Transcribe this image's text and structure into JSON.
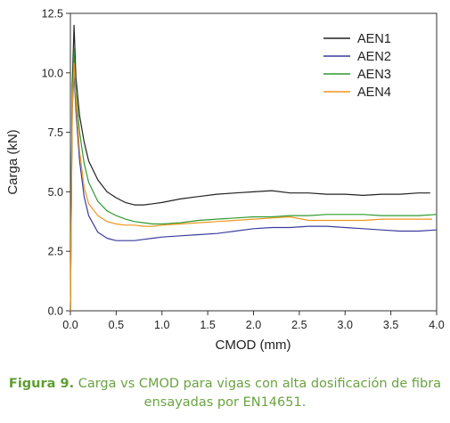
{
  "chart_data": {
    "type": "line",
    "xlabel": "CMOD (mm)",
    "ylabel": "Carga (kN)",
    "xlim": [
      0.0,
      4.0
    ],
    "ylim": [
      0.0,
      12.5
    ],
    "x_ticks": [
      "0.0",
      "0.5",
      "1.0",
      "1.5",
      "2.0",
      "2.5",
      "3.0",
      "3.5",
      "4.0"
    ],
    "y_ticks": [
      "0.0",
      "2.5",
      "5.0",
      "7.5",
      "10.0",
      "12.5"
    ],
    "legend_position": "top-right",
    "series": [
      {
        "name": "AEN1",
        "color": "#222222",
        "points": [
          [
            0,
            0
          ],
          [
            0.02,
            9.5
          ],
          [
            0.04,
            12.0
          ],
          [
            0.06,
            9.8
          ],
          [
            0.1,
            8.2
          ],
          [
            0.15,
            7.1
          ],
          [
            0.2,
            6.3
          ],
          [
            0.3,
            5.5
          ],
          [
            0.4,
            5.0
          ],
          [
            0.5,
            4.75
          ],
          [
            0.6,
            4.55
          ],
          [
            0.7,
            4.45
          ],
          [
            0.8,
            4.45
          ],
          [
            0.9,
            4.5
          ],
          [
            1.0,
            4.55
          ],
          [
            1.2,
            4.7
          ],
          [
            1.4,
            4.8
          ],
          [
            1.6,
            4.9
          ],
          [
            1.8,
            4.95
          ],
          [
            2.0,
            5.0
          ],
          [
            2.2,
            5.05
          ],
          [
            2.4,
            4.95
          ],
          [
            2.6,
            4.95
          ],
          [
            2.8,
            4.9
          ],
          [
            3.0,
            4.9
          ],
          [
            3.2,
            4.85
          ],
          [
            3.4,
            4.9
          ],
          [
            3.6,
            4.9
          ],
          [
            3.8,
            4.95
          ],
          [
            3.93,
            4.95
          ]
        ]
      },
      {
        "name": "AEN2",
        "color": "#3b3b9e",
        "points": [
          [
            0,
            0
          ],
          [
            0.02,
            8.5
          ],
          [
            0.04,
            10.0
          ],
          [
            0.06,
            8.4
          ],
          [
            0.1,
            6.3
          ],
          [
            0.15,
            4.8
          ],
          [
            0.2,
            4.0
          ],
          [
            0.3,
            3.3
          ],
          [
            0.4,
            3.05
          ],
          [
            0.5,
            2.95
          ],
          [
            0.6,
            2.95
          ],
          [
            0.7,
            2.95
          ],
          [
            0.8,
            3.0
          ],
          [
            0.9,
            3.05
          ],
          [
            1.0,
            3.1
          ],
          [
            1.2,
            3.15
          ],
          [
            1.4,
            3.2
          ],
          [
            1.6,
            3.25
          ],
          [
            1.8,
            3.35
          ],
          [
            2.0,
            3.45
          ],
          [
            2.2,
            3.5
          ],
          [
            2.4,
            3.5
          ],
          [
            2.6,
            3.55
          ],
          [
            2.8,
            3.55
          ],
          [
            3.0,
            3.5
          ],
          [
            3.2,
            3.45
          ],
          [
            3.4,
            3.4
          ],
          [
            3.6,
            3.35
          ],
          [
            3.8,
            3.35
          ],
          [
            4.0,
            3.4
          ]
        ]
      },
      {
        "name": "AEN3",
        "color": "#2e9a2e",
        "points": [
          [
            0,
            0
          ],
          [
            0.02,
            9.0
          ],
          [
            0.04,
            11.0
          ],
          [
            0.06,
            9.2
          ],
          [
            0.1,
            7.5
          ],
          [
            0.15,
            6.2
          ],
          [
            0.2,
            5.4
          ],
          [
            0.3,
            4.6
          ],
          [
            0.4,
            4.2
          ],
          [
            0.5,
            4.0
          ],
          [
            0.6,
            3.85
          ],
          [
            0.7,
            3.75
          ],
          [
            0.8,
            3.7
          ],
          [
            0.9,
            3.65
          ],
          [
            1.0,
            3.65
          ],
          [
            1.2,
            3.7
          ],
          [
            1.4,
            3.8
          ],
          [
            1.6,
            3.85
          ],
          [
            1.8,
            3.9
          ],
          [
            2.0,
            3.95
          ],
          [
            2.2,
            3.95
          ],
          [
            2.4,
            4.0
          ],
          [
            2.6,
            4.0
          ],
          [
            2.8,
            4.05
          ],
          [
            3.0,
            4.05
          ],
          [
            3.2,
            4.05
          ],
          [
            3.4,
            4.0
          ],
          [
            3.6,
            4.0
          ],
          [
            3.8,
            4.0
          ],
          [
            4.0,
            4.05
          ]
        ]
      },
      {
        "name": "AEN4",
        "color": "#f0961e",
        "points": [
          [
            0,
            0
          ],
          [
            0.02,
            8.5
          ],
          [
            0.04,
            10.4
          ],
          [
            0.06,
            8.8
          ],
          [
            0.1,
            6.7
          ],
          [
            0.15,
            5.2
          ],
          [
            0.2,
            4.5
          ],
          [
            0.3,
            4.0
          ],
          [
            0.4,
            3.75
          ],
          [
            0.5,
            3.65
          ],
          [
            0.6,
            3.6
          ],
          [
            0.7,
            3.6
          ],
          [
            0.8,
            3.55
          ],
          [
            0.9,
            3.55
          ],
          [
            1.0,
            3.6
          ],
          [
            1.2,
            3.65
          ],
          [
            1.4,
            3.7
          ],
          [
            1.6,
            3.75
          ],
          [
            1.8,
            3.8
          ],
          [
            2.0,
            3.85
          ],
          [
            2.2,
            3.9
          ],
          [
            2.4,
            3.95
          ],
          [
            2.6,
            3.8
          ],
          [
            2.8,
            3.8
          ],
          [
            3.0,
            3.8
          ],
          [
            3.2,
            3.8
          ],
          [
            3.4,
            3.85
          ],
          [
            3.6,
            3.85
          ],
          [
            3.8,
            3.85
          ],
          [
            3.95,
            3.85
          ]
        ]
      }
    ]
  },
  "caption": {
    "lead": "Figura 9.",
    "line1": " Carga vs CMOD para vigas con alta dosificación de fibra",
    "line2": "ensayadas por EN14651."
  }
}
